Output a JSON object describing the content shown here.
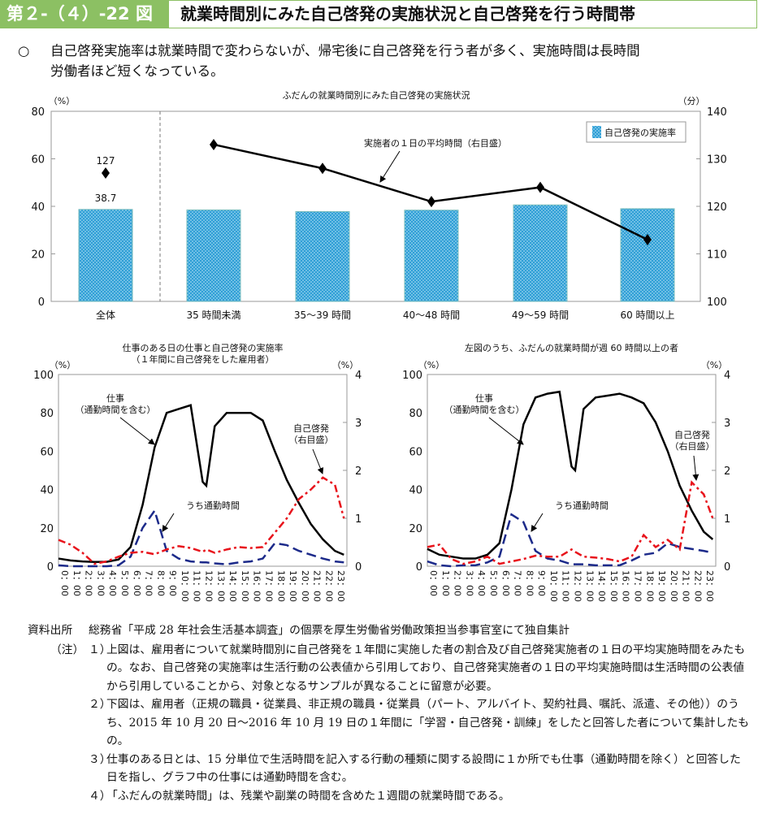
{
  "header": {
    "figure_number": "第２-（４）-22 図",
    "title": "就業時間別にみた自己啓発の実施状況と自己啓発を行う時間帯"
  },
  "summary": {
    "bullet": "○",
    "line1": "自己啓発実施率は就業時間で変わらないが、帰宅後に自己啓発を行う者が多く、実施時間は長時間",
    "line2": "労働者ほど短くなっている。"
  },
  "colors": {
    "green": "#8cc063",
    "bar": "#2f9fd6",
    "work": "#000000",
    "commute": "#1c2a8a",
    "selfdev": "#e8141c"
  },
  "chart_data": [
    {
      "type": "bar+line",
      "title": "ふだんの就業時間別にみた自己啓発の実施状況",
      "ylabel_left": "（%）",
      "ylabel_right": "（分）",
      "ylim_left": [
        0,
        80
      ],
      "ylim_right": [
        100,
        140
      ],
      "yticks_left": [
        0,
        20,
        40,
        60,
        80
      ],
      "yticks_right": [
        100,
        110,
        120,
        130,
        140
      ],
      "categories": [
        "全体",
        "35 時間未満",
        "35～39 時間",
        "40～48 時間",
        "49～59 時間",
        "60 時間以上"
      ],
      "series": [
        {
          "name": "自己啓発の実施率",
          "axis": "left",
          "type": "bar",
          "values": [
            38.7,
            38.5,
            37.8,
            38.4,
            40.6,
            39.0
          ]
        },
        {
          "name": "実施者の１日の平均時間（右目盛）",
          "axis": "right",
          "type": "line",
          "values": [
            127,
            133,
            128,
            121,
            124,
            113
          ]
        }
      ],
      "data_labels": {
        "bar_total": "38.7",
        "line_total": "127"
      },
      "legend": "top-right"
    },
    {
      "type": "line",
      "title": "仕事のある日の仕事と自己啓発の実施率",
      "subtitle": "（１年間に自己啓発をした雇用者）",
      "ylabel_left": "（%）",
      "ylabel_right": "（%）",
      "ylim_left": [
        0,
        100
      ],
      "ylim_right": [
        0,
        4
      ],
      "yticks_left": [
        0,
        20,
        40,
        60,
        80,
        100
      ],
      "yticks_right": [
        0,
        1,
        2,
        3,
        4
      ],
      "xtick_labels": [
        "0：00",
        "1：00",
        "2：00",
        "3：00",
        "4：00",
        "5：00",
        "6：00",
        "7：00",
        "8：00",
        "9：00",
        "10：00",
        "11：00",
        "12：00",
        "13：00",
        "14：00",
        "15：00",
        "16：00",
        "17：00",
        "18：00",
        "19：00",
        "20：00",
        "21：00",
        "22：00",
        "23：00"
      ],
      "x": [
        0,
        1,
        2,
        3,
        4,
        5,
        6,
        7,
        8,
        9,
        10,
        11,
        12,
        12.3,
        13,
        14,
        15,
        16,
        17,
        18,
        19,
        20,
        21,
        22,
        23,
        23.75
      ],
      "series": [
        {
          "name": "仕事（通勤時間を含む）",
          "axis": "left",
          "values": [
            4,
            3,
            2.5,
            2.2,
            2.3,
            3.5,
            10,
            32,
            62,
            80,
            82,
            84,
            44,
            42,
            73,
            80,
            80,
            80,
            76,
            60,
            45,
            33,
            22,
            14,
            8,
            6
          ]
        },
        {
          "name": "うち通勤時間",
          "axis": "left",
          "values": [
            0.5,
            0,
            0,
            0,
            0,
            0.5,
            5,
            20,
            29,
            8,
            4,
            2.5,
            2,
            2,
            1.5,
            1,
            2,
            2.5,
            4,
            12,
            11,
            8,
            6,
            4,
            2.5,
            2
          ]
        },
        {
          "name": "自己啓発（右目盛）",
          "axis": "right",
          "values": [
            0.55,
            0.45,
            0.28,
            0.05,
            0.1,
            0.2,
            0.28,
            0.3,
            0.25,
            0.35,
            0.42,
            0.38,
            0.3,
            0.35,
            0.28,
            0.35,
            0.4,
            0.38,
            0.4,
            0.7,
            1.0,
            1.4,
            1.6,
            1.85,
            1.7,
            1.0
          ]
        }
      ]
    },
    {
      "type": "line",
      "title": "左図のうち、ふだんの就業時間が週 60 時間以上の者",
      "ylabel_left": "（%）",
      "ylabel_right": "（%）",
      "ylim_left": [
        0,
        100
      ],
      "ylim_right": [
        0,
        4
      ],
      "yticks_left": [
        0,
        20,
        40,
        60,
        80,
        100
      ],
      "yticks_right": [
        0,
        1,
        2,
        3,
        4
      ],
      "xtick_labels": [
        "0：00",
        "1：00",
        "2：00",
        "3：00",
        "4：00",
        "5：00",
        "6：00",
        "7：00",
        "8：00",
        "9：00",
        "10：00",
        "11：00",
        "12：00",
        "13：00",
        "14：00",
        "15：00",
        "16：00",
        "17：00",
        "18：00",
        "19：00",
        "20：00",
        "21：00",
        "22：00",
        "23：00"
      ],
      "x": [
        0,
        1,
        2,
        3,
        4,
        5,
        6,
        7,
        8,
        9,
        10,
        11,
        12,
        12.3,
        13,
        14,
        15,
        16,
        17,
        18,
        19,
        20,
        21,
        22,
        23,
        23.75
      ],
      "series": [
        {
          "name": "仕事（通勤時間を含む）",
          "axis": "left",
          "values": [
            9,
            6,
            5,
            4,
            4,
            6,
            12,
            40,
            74,
            88,
            90,
            91,
            52,
            50,
            82,
            88,
            89,
            90,
            88,
            85,
            75,
            60,
            42,
            29,
            18,
            14
          ]
        },
        {
          "name": "うち通勤時間",
          "axis": "left",
          "values": [
            2.5,
            0.5,
            0,
            0.5,
            0.5,
            2,
            5,
            27,
            23,
            8,
            4,
            3,
            1,
            1,
            1,
            0.5,
            0.5,
            0.5,
            3,
            6,
            7,
            12,
            10,
            9,
            8,
            7
          ]
        },
        {
          "name": "自己啓発（右目盛）",
          "axis": "right",
          "values": [
            0.4,
            0.45,
            0.15,
            0.05,
            0.1,
            0.2,
            0.05,
            0.1,
            0.15,
            0.22,
            0.2,
            0.2,
            0.35,
            0.3,
            0.2,
            0.18,
            0.15,
            0.1,
            0.2,
            0.65,
            0.4,
            0.55,
            0.35,
            1.75,
            1.5,
            1.0
          ]
        }
      ]
    }
  ],
  "annotations": {
    "work": "仕事",
    "work_sub": "（通勤時間を含む）",
    "commute": "うち通勤時間",
    "self": "自己啓発",
    "self_sub": "（右目盛）"
  },
  "notes": {
    "source_label": "資料出所",
    "source": "総務省「平成 28 年社会生活基本調査」の個票を厚生労働省労働政策担当参事官室にて独自集計",
    "note_label": "（注）",
    "items": [
      {
        "n": "１）",
        "t": "上図は、雇用者について就業時間別に自己啓発を１年間に実施した者の割合及び自己啓発実施者の１日の平均実施時間をみたもの。なお、自己啓発の実施率は生活行動の公表値から引用しており、自己啓発実施者の１日の平均実施時間は生活時間の公表値から引用していることから、対象となるサンプルが異なることに留意が必要。"
      },
      {
        "n": "２）",
        "t": "下図は、雇用者（正規の職員・従業員、非正規の職員・従業員（パート、アルバイト、契約社員、嘱託、派遣、その他））のうち、2015 年 10 月 20 日～2016 年 10 月 19 日の１年間に「学習・自己啓発・訓練」をしたと回答した者について集計したもの。"
      },
      {
        "n": "３）",
        "t": "仕事のある日とは、15 分単位で生活時間を記入する行動の種類に関する設問に１か所でも仕事（通勤時間を除く）と回答した日を指し、グラフ中の仕事には通勤時間を含む。"
      },
      {
        "n": "４）",
        "t": "「ふだんの就業時間」は、残業や副業の時間を含めた１週間の就業時間である。"
      }
    ]
  }
}
